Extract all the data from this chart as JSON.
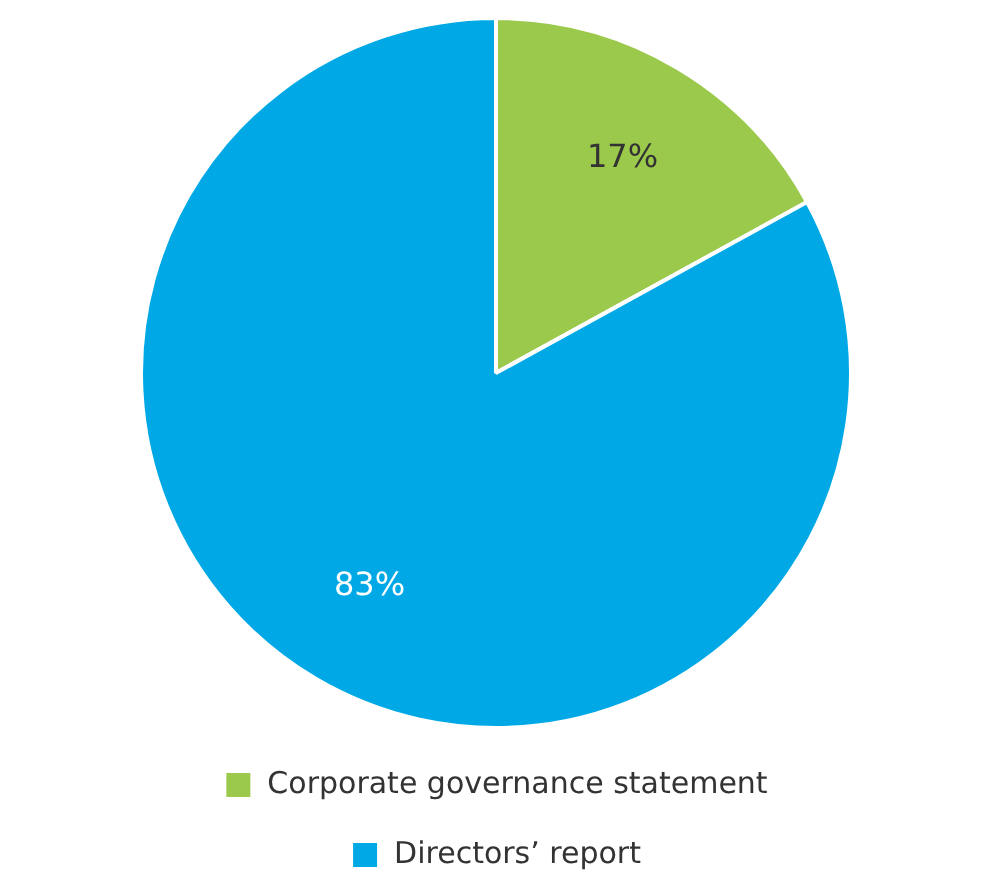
{
  "chart_data": {
    "type": "pie",
    "categories": [
      "Corporate governance statement",
      "Directors’ report"
    ],
    "values": [
      17,
      83
    ],
    "colors": [
      "#9bc94b",
      "#00a9e6"
    ],
    "value_labels": [
      "17%",
      "83%"
    ],
    "legend": "bottom"
  }
}
